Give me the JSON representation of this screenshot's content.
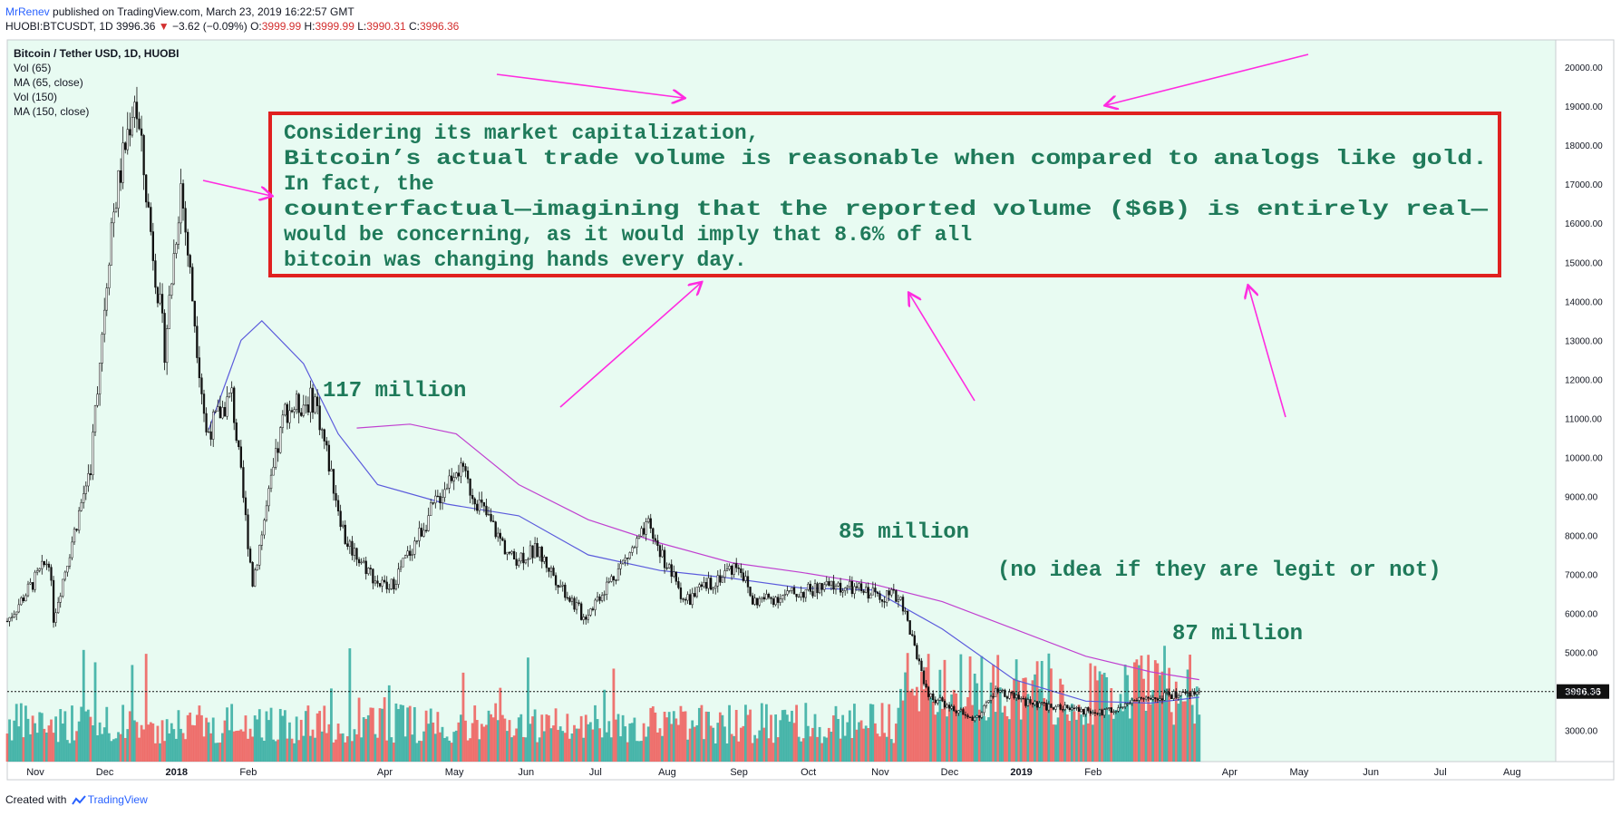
{
  "header": {
    "author": "MrRenev",
    "published": "published on TradingView.com, March 23, 2019 16:22:57 GMT",
    "symbol": "HUOBI:BTCUSDT, 1D",
    "price": "3996.36",
    "change": "−3.62 (−0.09%)",
    "o_label": "O:",
    "o_value": "3999.99",
    "h_label": "H:",
    "h_value": "3999.99",
    "l_label": "L:",
    "l_value": "3990.31",
    "c_label": "C:",
    "c_value": "3996.36"
  },
  "legend": [
    "Bitcoin / Tether USD, 1D, HUOBI",
    "Vol (65)",
    "MA (65, close)",
    "Vol (150)",
    "MA (150, close)"
  ],
  "annotation_box": [
    "Considering its market capitalization,",
    "Bitcoin’s actual trade volume is reasonable when compared to analogs like gold.",
    "In fact, the",
    "counterfactual—imagining that the reported volume ($6B) is entirely real—",
    "would be concerning, as it would imply that 8.6% of all",
    "bitcoin was changing hands every day."
  ],
  "colors": {
    "background": "#e8fbf2",
    "up": "#26a69a",
    "down": "#ef5350",
    "ma65": "#5b5bdc",
    "ma150": "#c040d0",
    "annotation_text": "#1f7a5a",
    "box_border": "#e0201f",
    "arrow": "#ff2be0"
  },
  "footer": {
    "created": "Created with",
    "brand": "TradingView"
  },
  "chart_data": {
    "type": "candlestick",
    "symbol": "HUOBI:BTCUSDT",
    "interval": "1D",
    "ylim": [
      2200,
      20700
    ],
    "y_ticks": [
      "3000.00",
      "4000.00",
      "5000.00",
      "6000.00",
      "7000.00",
      "8000.00",
      "9000.00",
      "10000.00",
      "11000.00",
      "12000.00",
      "13000.00",
      "14000.00",
      "15000.00",
      "16000.00",
      "17000.00",
      "18000.00",
      "19000.00",
      "20000.00"
    ],
    "x_ticks": [
      "Nov",
      "Dec",
      "2018",
      "Feb",
      "Apr",
      "May",
      "Jun",
      "Jul",
      "Aug",
      "Sep",
      "Oct",
      "Nov",
      "Dec",
      "2019",
      "Feb",
      "Apr",
      "May",
      "Jun",
      "Jul",
      "Aug"
    ],
    "x_tick_dates": [
      "2017-11-01",
      "2017-12-01",
      "2018-01-01",
      "2018-02-01",
      "2018-04-01",
      "2018-05-01",
      "2018-06-01",
      "2018-07-01",
      "2018-08-01",
      "2018-09-01",
      "2018-10-01",
      "2018-11-01",
      "2018-12-01",
      "2019-01-01",
      "2019-02-01",
      "2019-04-01",
      "2019-05-01",
      "2019-06-01",
      "2019-07-01",
      "2019-08-01"
    ],
    "x_range": [
      "2017-10-23",
      "2019-08-23"
    ],
    "price_path": [
      {
        "date": "2017-10-23",
        "price": 5800
      },
      {
        "date": "2017-11-10",
        "price": 7400
      },
      {
        "date": "2017-11-12",
        "price": 5900
      },
      {
        "date": "2017-11-28",
        "price": 9800
      },
      {
        "date": "2017-12-07",
        "price": 16000
      },
      {
        "date": "2017-12-17",
        "price": 19300
      },
      {
        "date": "2017-12-30",
        "price": 12800
      },
      {
        "date": "2018-01-06",
        "price": 17000
      },
      {
        "date": "2018-01-17",
        "price": 10600
      },
      {
        "date": "2018-01-28",
        "price": 11600
      },
      {
        "date": "2018-02-06",
        "price": 6800
      },
      {
        "date": "2018-02-20",
        "price": 11200
      },
      {
        "date": "2018-03-05",
        "price": 11500
      },
      {
        "date": "2018-03-18",
        "price": 7900
      },
      {
        "date": "2018-04-01",
        "price": 6800
      },
      {
        "date": "2018-04-06",
        "price": 6600
      },
      {
        "date": "2018-05-05",
        "price": 9800
      },
      {
        "date": "2018-05-29",
        "price": 7400
      },
      {
        "date": "2018-06-09",
        "price": 7600
      },
      {
        "date": "2018-06-29",
        "price": 5900
      },
      {
        "date": "2018-07-27",
        "price": 8200
      },
      {
        "date": "2018-08-12",
        "price": 6300
      },
      {
        "date": "2018-09-04",
        "price": 7300
      },
      {
        "date": "2018-09-10",
        "price": 6300
      },
      {
        "date": "2018-10-15",
        "price": 6700
      },
      {
        "date": "2018-11-13",
        "price": 6400
      },
      {
        "date": "2018-11-25",
        "price": 3900
      },
      {
        "date": "2018-12-15",
        "price": 3250
      },
      {
        "date": "2018-12-24",
        "price": 4000
      },
      {
        "date": "2019-01-10",
        "price": 3650
      },
      {
        "date": "2019-02-07",
        "price": 3450
      },
      {
        "date": "2019-02-24",
        "price": 3800
      },
      {
        "date": "2019-03-22",
        "price": 3996.36
      }
    ],
    "ma65": [
      {
        "date": "2018-01-18",
        "price": 10700
      },
      {
        "date": "2018-02-01",
        "price": 13000
      },
      {
        "date": "2018-02-10",
        "price": 13500
      },
      {
        "date": "2018-02-28",
        "price": 12400
      },
      {
        "date": "2018-03-15",
        "price": 10600
      },
      {
        "date": "2018-04-01",
        "price": 9300
      },
      {
        "date": "2018-05-01",
        "price": 8800
      },
      {
        "date": "2018-06-01",
        "price": 8500
      },
      {
        "date": "2018-07-01",
        "price": 7500
      },
      {
        "date": "2018-08-01",
        "price": 7100
      },
      {
        "date": "2018-09-01",
        "price": 6900
      },
      {
        "date": "2018-10-01",
        "price": 6650
      },
      {
        "date": "2018-11-01",
        "price": 6600
      },
      {
        "date": "2018-12-01",
        "price": 5600
      },
      {
        "date": "2019-01-01",
        "price": 4300
      },
      {
        "date": "2019-02-01",
        "price": 3750
      },
      {
        "date": "2019-03-01",
        "price": 3700
      },
      {
        "date": "2019-03-22",
        "price": 3850
      }
    ],
    "ma150": [
      {
        "date": "2018-03-23",
        "price": 10750
      },
      {
        "date": "2018-04-15",
        "price": 10850
      },
      {
        "date": "2018-05-05",
        "price": 10600
      },
      {
        "date": "2018-06-01",
        "price": 9300
      },
      {
        "date": "2018-07-01",
        "price": 8400
      },
      {
        "date": "2018-08-01",
        "price": 7800
      },
      {
        "date": "2018-09-01",
        "price": 7300
      },
      {
        "date": "2018-10-01",
        "price": 7050
      },
      {
        "date": "2018-11-01",
        "price": 6750
      },
      {
        "date": "2018-12-01",
        "price": 6300
      },
      {
        "date": "2019-01-01",
        "price": 5600
      },
      {
        "date": "2019-02-01",
        "price": 4900
      },
      {
        "date": "2019-03-01",
        "price": 4500
      },
      {
        "date": "2019-03-22",
        "price": 4300
      }
    ],
    "volume_peaks": [
      {
        "date": "2018-03-05",
        "label": "117 million"
      },
      {
        "date": "2018-10-15",
        "label": "85 million"
      },
      {
        "date": "2019-02-20",
        "label": "87 million"
      }
    ],
    "annotations": [
      "117 million",
      "85 million",
      "(no idea if they are legit or not)",
      "87 million"
    ],
    "last_price": "3996.36",
    "last_price_value": 3996.36
  }
}
